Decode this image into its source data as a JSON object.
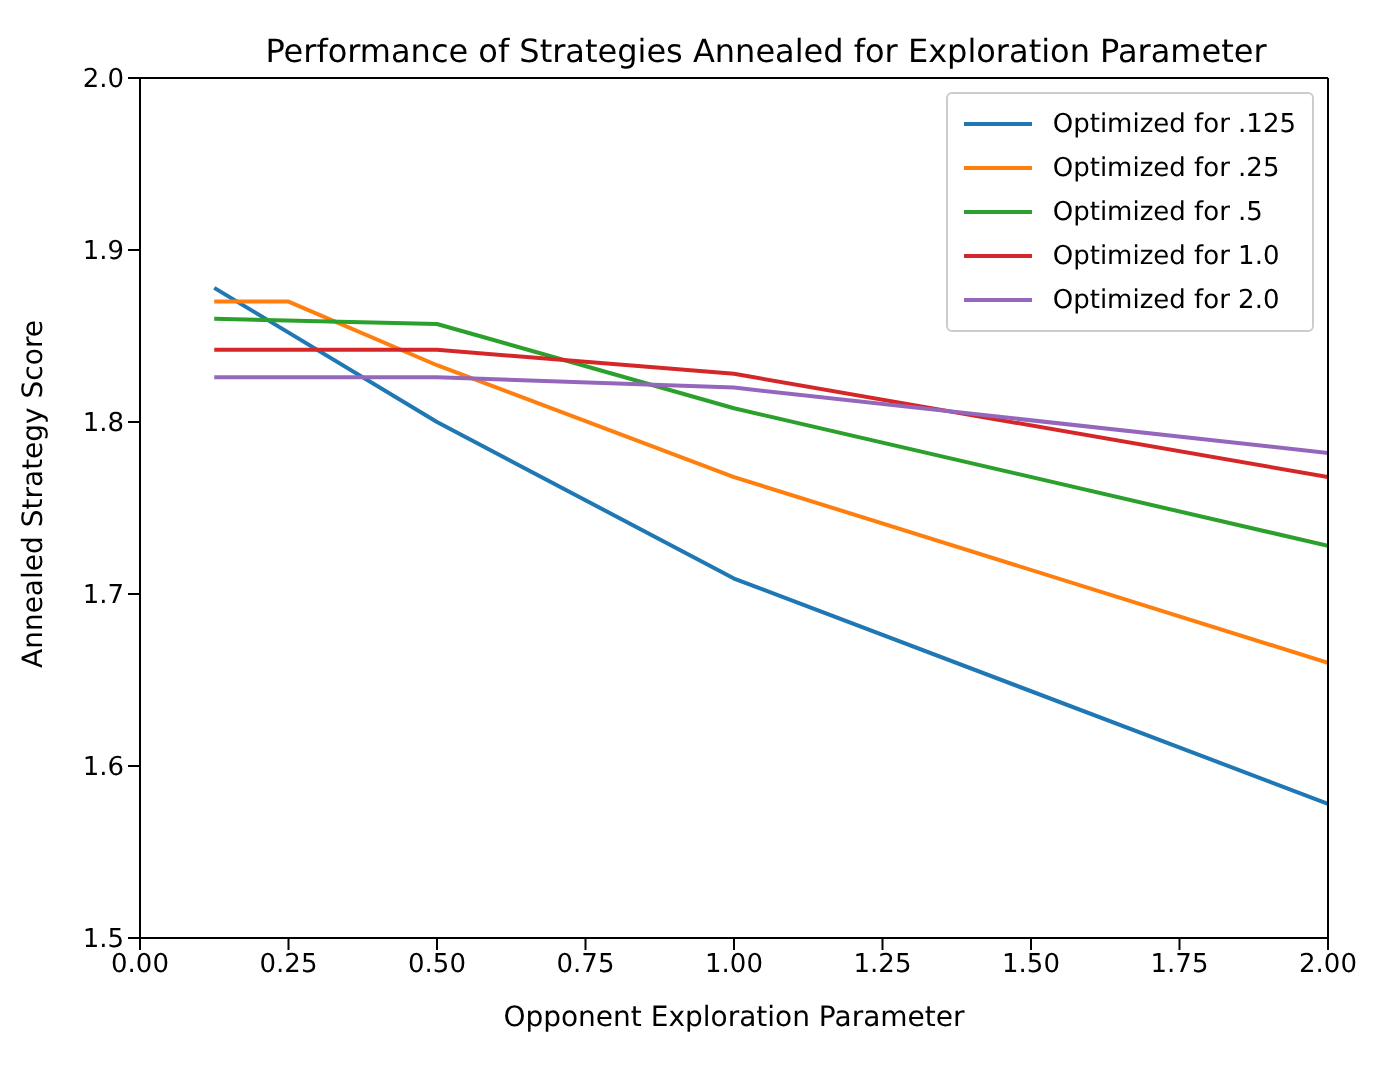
{
  "chart_data": {
    "type": "line",
    "title": "Performance of Strategies Annealed for Exploration Parameter",
    "xlabel": "Opponent Exploration Parameter",
    "ylabel": "Annealed Strategy Score",
    "series": [
      {
        "name": "Optimized for .125",
        "color": "#1f77b4",
        "x": [
          0.125,
          0.5,
          1,
          2
        ],
        "values": [
          1.878,
          1.8,
          1.709,
          1.578
        ]
      },
      {
        "name": "Optimized for .25",
        "color": "#ff7f0e",
        "x": [
          0.125,
          0.25,
          0.5,
          1,
          2
        ],
        "values": [
          1.87,
          1.87,
          1.833,
          1.768,
          1.66
        ]
      },
      {
        "name": "Optimized for .5",
        "color": "#2ca02c",
        "x": [
          0.125,
          0.5,
          1,
          2
        ],
        "values": [
          1.86,
          1.857,
          1.808,
          1.728
        ]
      },
      {
        "name": "Optimized for 1.0",
        "color": "#d62728",
        "x": [
          0.125,
          0.5,
          1,
          2
        ],
        "values": [
          1.842,
          1.842,
          1.828,
          1.768
        ]
      },
      {
        "name": "Optimized for 2.0",
        "color": "#9467bd",
        "x": [
          0.125,
          0.5,
          1,
          2
        ],
        "values": [
          1.826,
          1.826,
          1.82,
          1.782
        ]
      }
    ],
    "xlim": [
      0,
      2
    ],
    "xticks": [
      {
        "value": 0,
        "label": "0.00"
      },
      {
        "value": 0.25,
        "label": "0.25"
      },
      {
        "value": 0.5,
        "label": "0.50"
      },
      {
        "value": 0.75,
        "label": "0.75"
      },
      {
        "value": 1,
        "label": "1.00"
      },
      {
        "value": 1.25,
        "label": "1.25"
      },
      {
        "value": 1.5,
        "label": "1.50"
      },
      {
        "value": 1.75,
        "label": "1.75"
      },
      {
        "value": 2,
        "label": "2.00"
      }
    ],
    "ylim": [
      1.5,
      2
    ],
    "yticks": [
      1.5,
      1.6,
      1.7,
      1.8,
      1.9,
      {
        "value": 2,
        "label": "2.0"
      }
    ],
    "grid": false,
    "legend": "top right",
    "marker": "none",
    "line_style": "solid"
  }
}
